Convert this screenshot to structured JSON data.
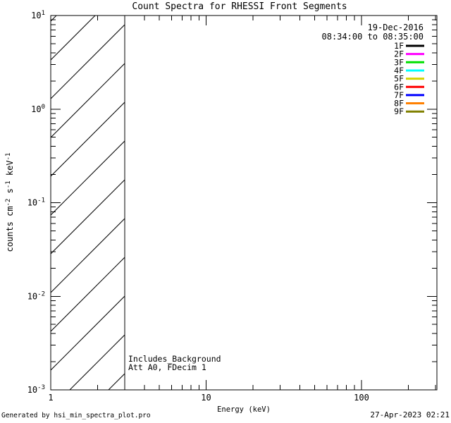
{
  "title": "Count Spectra for RHESSI Front Segments",
  "colors": {
    "foreground": "#000000",
    "background": "#ffffff"
  },
  "legend": {
    "date": "19-Dec-2016",
    "time_range": "08:34:00 to 08:35:00",
    "entries": [
      {
        "label": "1F",
        "color": "#000000"
      },
      {
        "label": "2F",
        "color": "#ff00ff"
      },
      {
        "label": "3F",
        "color": "#00e000"
      },
      {
        "label": "4F",
        "color": "#00ffff"
      },
      {
        "label": "5F",
        "color": "#d4d400"
      },
      {
        "label": "6F",
        "color": "#ff0000"
      },
      {
        "label": "7F",
        "color": "#0000ff"
      },
      {
        "label": "8F",
        "color": "#ff8000"
      },
      {
        "label": "9F",
        "color": "#808000"
      }
    ]
  },
  "annotations": {
    "line1": "Includes_Background",
    "line2": "Att A0, FDecim 1"
  },
  "footer": {
    "left": "Generated by hsi_min_spectra_plot.pro",
    "right": "27-Apr-2023 02:21"
  },
  "chart_data": {
    "type": "line",
    "title": "Count Spectra for RHESSI Front Segments",
    "xlabel": "Energy (keV)",
    "ylabel": "counts cm^-2 s^-1 keV^-1",
    "ylabel_parts": [
      {
        "t": "counts cm"
      },
      {
        "t": "-2",
        "sup": true
      },
      {
        "t": " s"
      },
      {
        "t": "-1",
        "sup": true
      },
      {
        "t": " keV"
      },
      {
        "t": "-1",
        "sup": true
      }
    ],
    "x_scale": "log",
    "y_scale": "log",
    "xlim": [
      1,
      305
    ],
    "ylim": [
      0.001,
      10
    ],
    "grid": false,
    "legend_position": "top-right",
    "x_major_ticks": [
      1,
      10,
      100
    ],
    "x_tick_labels": [
      "1",
      "10",
      "100"
    ],
    "x_minor_ticks": [
      2,
      3,
      4,
      5,
      6,
      7,
      8,
      9,
      20,
      30,
      40,
      50,
      60,
      70,
      80,
      90,
      200,
      300
    ],
    "y_major_ticks": [
      10,
      1,
      0.1,
      0.01,
      0.001
    ],
    "y_tick_label_parts": [
      {
        "base": "10",
        "exp": "1"
      },
      {
        "base": "10",
        "exp": "0"
      },
      {
        "base": "10",
        "exp": "-1"
      },
      {
        "base": "10",
        "exp": "-2"
      },
      {
        "base": "10",
        "exp": "-3"
      }
    ],
    "y_minor_ticks": [
      0.002,
      0.003,
      0.004,
      0.005,
      0.006,
      0.007,
      0.008,
      0.009,
      0.02,
      0.03,
      0.04,
      0.05,
      0.06,
      0.07,
      0.08,
      0.09,
      0.2,
      0.3,
      0.4,
      0.5,
      0.6,
      0.7,
      0.8,
      0.9,
      2,
      3,
      4,
      5,
      6,
      7,
      8,
      9
    ],
    "hatched_region": {
      "x_range": [
        1,
        3
      ],
      "style": "diagonal-hatch",
      "note": "hatched low-energy band; no spectra curves are drawn in the plot area"
    },
    "series": [
      {
        "name": "1F",
        "color": "#000000",
        "values": []
      },
      {
        "name": "2F",
        "color": "#ff00ff",
        "values": []
      },
      {
        "name": "3F",
        "color": "#00e000",
        "values": []
      },
      {
        "name": "4F",
        "color": "#00ffff",
        "values": []
      },
      {
        "name": "5F",
        "color": "#d4d400",
        "values": []
      },
      {
        "name": "6F",
        "color": "#ff0000",
        "values": []
      },
      {
        "name": "7F",
        "color": "#0000ff",
        "values": []
      },
      {
        "name": "8F",
        "color": "#ff8000",
        "values": []
      },
      {
        "name": "9F",
        "color": "#808000",
        "values": []
      }
    ]
  }
}
